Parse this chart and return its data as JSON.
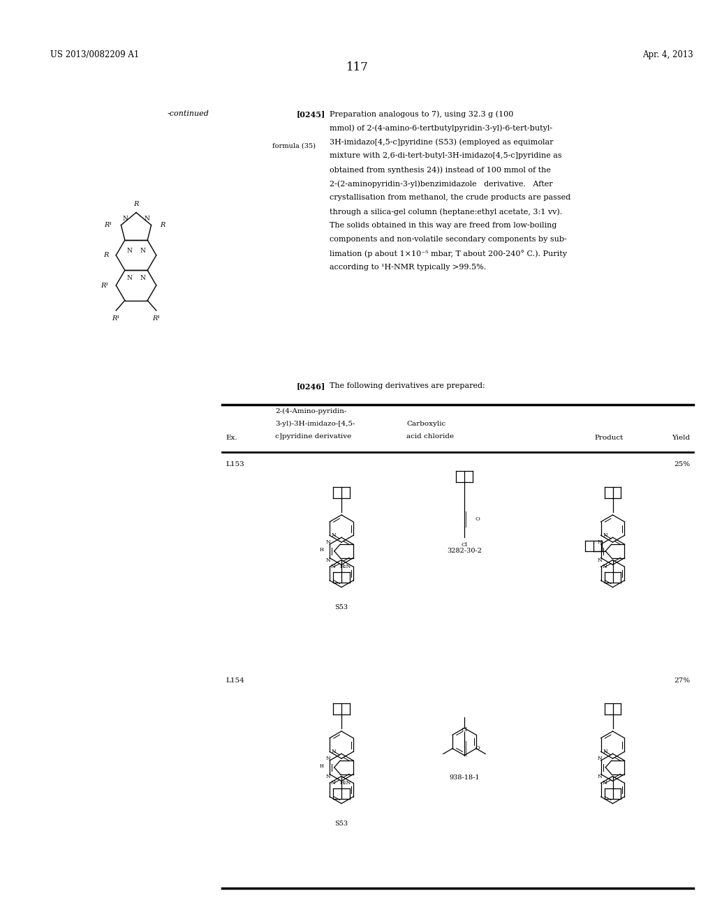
{
  "background_color": "#ffffff",
  "page_width": 10.24,
  "page_height": 13.2,
  "header_left": "US 2013/0082209 A1",
  "header_right": "Apr. 4, 2013",
  "page_number": "117",
  "continued_label": "-continued",
  "formula_label": "formula (35)",
  "paragraph_0245_label": "[0245]",
  "paragraph_0246_label": "[0246]",
  "paragraph_0246_text": "The following derivatives are prepared:",
  "table_header_ex": "Ex.",
  "table_header_col2_line1": "2-(4-Amino-pyridin-",
  "table_header_col2_line2": "3-yl)-3H-imidazo-[4,5-",
  "table_header_col2_line3": "c]pyridine derivative",
  "table_header_col3_line1": "Carboxylic",
  "table_header_col3_line2": "acid chloride",
  "table_header_col4": "Product",
  "table_header_yield": "Yield",
  "row1_ex": "L153",
  "row1_yield": "25%",
  "row1_reagent_id": "3282-30-2",
  "row1_reactant_id": "S53",
  "row2_ex": "L154",
  "row2_yield": "27%",
  "row2_reagent_id": "938-18-1",
  "row2_reactant_id": "S53",
  "para_0245_lines": [
    "Preparation analogous to 7), using 32.3 g (100",
    "mmol) of 2-(4-amino-6-tertbutylpyridin-3-yl)-6-tert-butyl-",
    "3H-imidazo[4,5-c]pyridine (S53) (employed as equimolar",
    "mixture with 2,6-di-tert-butyl-3H-imidazo[4,5-c]pyridine as",
    "obtained from synthesis 24)) instead of 100 mmol of the",
    "2-(2-aminopyridin-3-yl)benzimidazole   derivative.   After",
    "crystallisation from methanol, the crude products are passed",
    "through a silica-gel column (heptane:ethyl acetate, 3:1 vv).",
    "The solids obtained in this way are freed from low-boiling",
    "components and non-volatile secondary components by sub-",
    "limation (p about 1×10⁻⁵ mbar, T about 200-240° C.). Purity",
    "according to ¹H-NMR typically >99.5%."
  ]
}
